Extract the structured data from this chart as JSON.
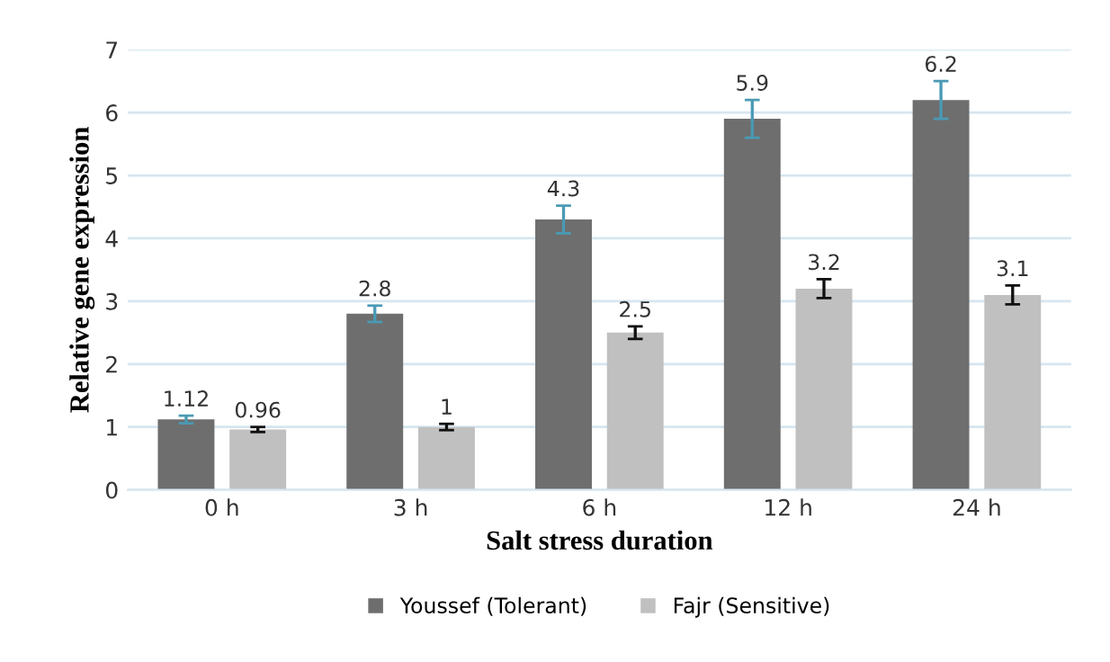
{
  "chart_data": {
    "type": "bar",
    "xlabel": "Salt stress duration",
    "ylabel": "Relative gene expression",
    "categories": [
      "0 h",
      "3 h",
      "6 h",
      "12 h",
      "24 h"
    ],
    "series": [
      {
        "name": "Youssef (Tolerant)",
        "color": "#6e6e6e",
        "values": [
          1.12,
          2.8,
          4.3,
          5.9,
          6.2
        ],
        "errors": [
          0.06,
          0.13,
          0.22,
          0.3,
          0.3
        ]
      },
      {
        "name": "Fajr (Sensitive)",
        "color": "#c0c0c0",
        "values": [
          0.96,
          1,
          2.5,
          3.2,
          3.1
        ],
        "errors": [
          0.04,
          0.05,
          0.1,
          0.15,
          0.15
        ]
      }
    ],
    "ylim": [
      0,
      7
    ],
    "yticks": [
      0,
      1,
      2,
      3,
      4,
      5,
      6,
      7
    ],
    "grid": "y",
    "legend": "bottom",
    "data_labels": true
  }
}
